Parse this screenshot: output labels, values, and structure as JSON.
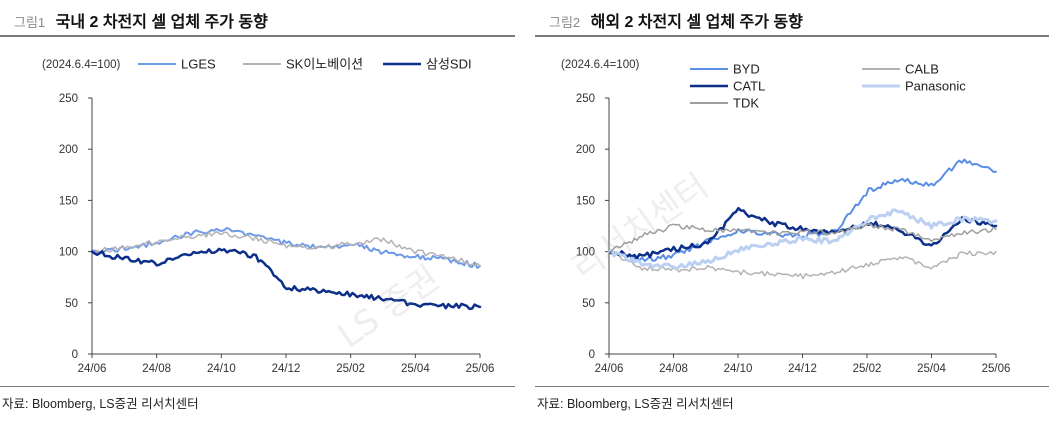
{
  "figures": [
    {
      "tag": "그림1",
      "title": "국내 2 차전지 셀 업체 주가 동향",
      "source": "자료: Bloomberg, LS증권 리서치센터"
    },
    {
      "tag": "그림2",
      "title": "해외 2 차전지 셀 업체 주가 동향",
      "source": "자료: Bloomberg, LS증권 리서치센터"
    }
  ],
  "chart_data": [
    {
      "type": "line",
      "base_note": "(2024.6.4=100)",
      "x_ticks": [
        "24/06",
        "24/08",
        "24/10",
        "24/12",
        "25/02",
        "25/04",
        "25/06"
      ],
      "x_dates": [
        "2024-06-04",
        "2024-07-04",
        "2024-08-04",
        "2024-09-04",
        "2024-10-04",
        "2024-11-04",
        "2024-12-04",
        "2025-01-04",
        "2025-02-04",
        "2025-03-04",
        "2025-04-04",
        "2025-05-04",
        "2025-06-04"
      ],
      "ylim": [
        0,
        250
      ],
      "y_ticks": [
        0,
        50,
        100,
        150,
        200,
        250
      ],
      "legend_position": "top",
      "series": [
        {
          "name": "LGES",
          "color": "#6f9ae8",
          "width": 2,
          "values": [
            100,
            103,
            108,
            118,
            122,
            115,
            108,
            104,
            107,
            100,
            95,
            92,
            86
          ]
        },
        {
          "name": "SK이노베이션",
          "color": "#b3b3b3",
          "width": 1.5,
          "values": [
            100,
            104,
            110,
            115,
            118,
            113,
            106,
            104,
            108,
            112,
            100,
            95,
            86
          ]
        },
        {
          "name": "삼성SDI",
          "color": "#0c2f8a",
          "width": 2.5,
          "values": [
            100,
            93,
            88,
            98,
            102,
            96,
            65,
            62,
            58,
            54,
            49,
            47,
            46
          ]
        }
      ]
    },
    {
      "type": "line",
      "base_note": "(2024.6.4=100)",
      "x_ticks": [
        "24/06",
        "24/08",
        "24/10",
        "24/12",
        "25/02",
        "25/04",
        "25/06"
      ],
      "x_dates": [
        "2024-06-04",
        "2024-07-04",
        "2024-08-04",
        "2024-09-04",
        "2024-10-04",
        "2024-11-04",
        "2024-12-04",
        "2025-01-04",
        "2025-02-04",
        "2025-03-04",
        "2025-04-04",
        "2025-05-04",
        "2025-06-04"
      ],
      "ylim": [
        0,
        250
      ],
      "y_ticks": [
        0,
        50,
        100,
        150,
        200,
        250
      ],
      "legend_position": "top",
      "series": [
        {
          "name": "BYD",
          "color": "#5b8ee6",
          "width": 2,
          "values": [
            100,
            92,
            96,
            110,
            120,
            118,
            115,
            120,
            160,
            170,
            165,
            190,
            178
          ]
        },
        {
          "name": "CALB",
          "color": "#b3b3b3",
          "width": 1.5,
          "values": [
            100,
            84,
            82,
            85,
            80,
            78,
            76,
            80,
            88,
            95,
            85,
            98,
            100
          ]
        },
        {
          "name": "CATL",
          "color": "#0c2f8a",
          "width": 2.5,
          "values": [
            100,
            95,
            102,
            108,
            140,
            128,
            122,
            118,
            128,
            122,
            105,
            132,
            125
          ]
        },
        {
          "name": "Panasonic",
          "color": "#bcd0f2",
          "width": 3,
          "values": [
            100,
            88,
            85,
            90,
            102,
            108,
            112,
            110,
            132,
            140,
            125,
            132,
            130
          ]
        },
        {
          "name": "TDK",
          "color": "#9e9e9e",
          "width": 1.5,
          "values": [
            100,
            115,
            125,
            122,
            120,
            118,
            120,
            118,
            125,
            122,
            110,
            118,
            122
          ]
        }
      ]
    }
  ]
}
